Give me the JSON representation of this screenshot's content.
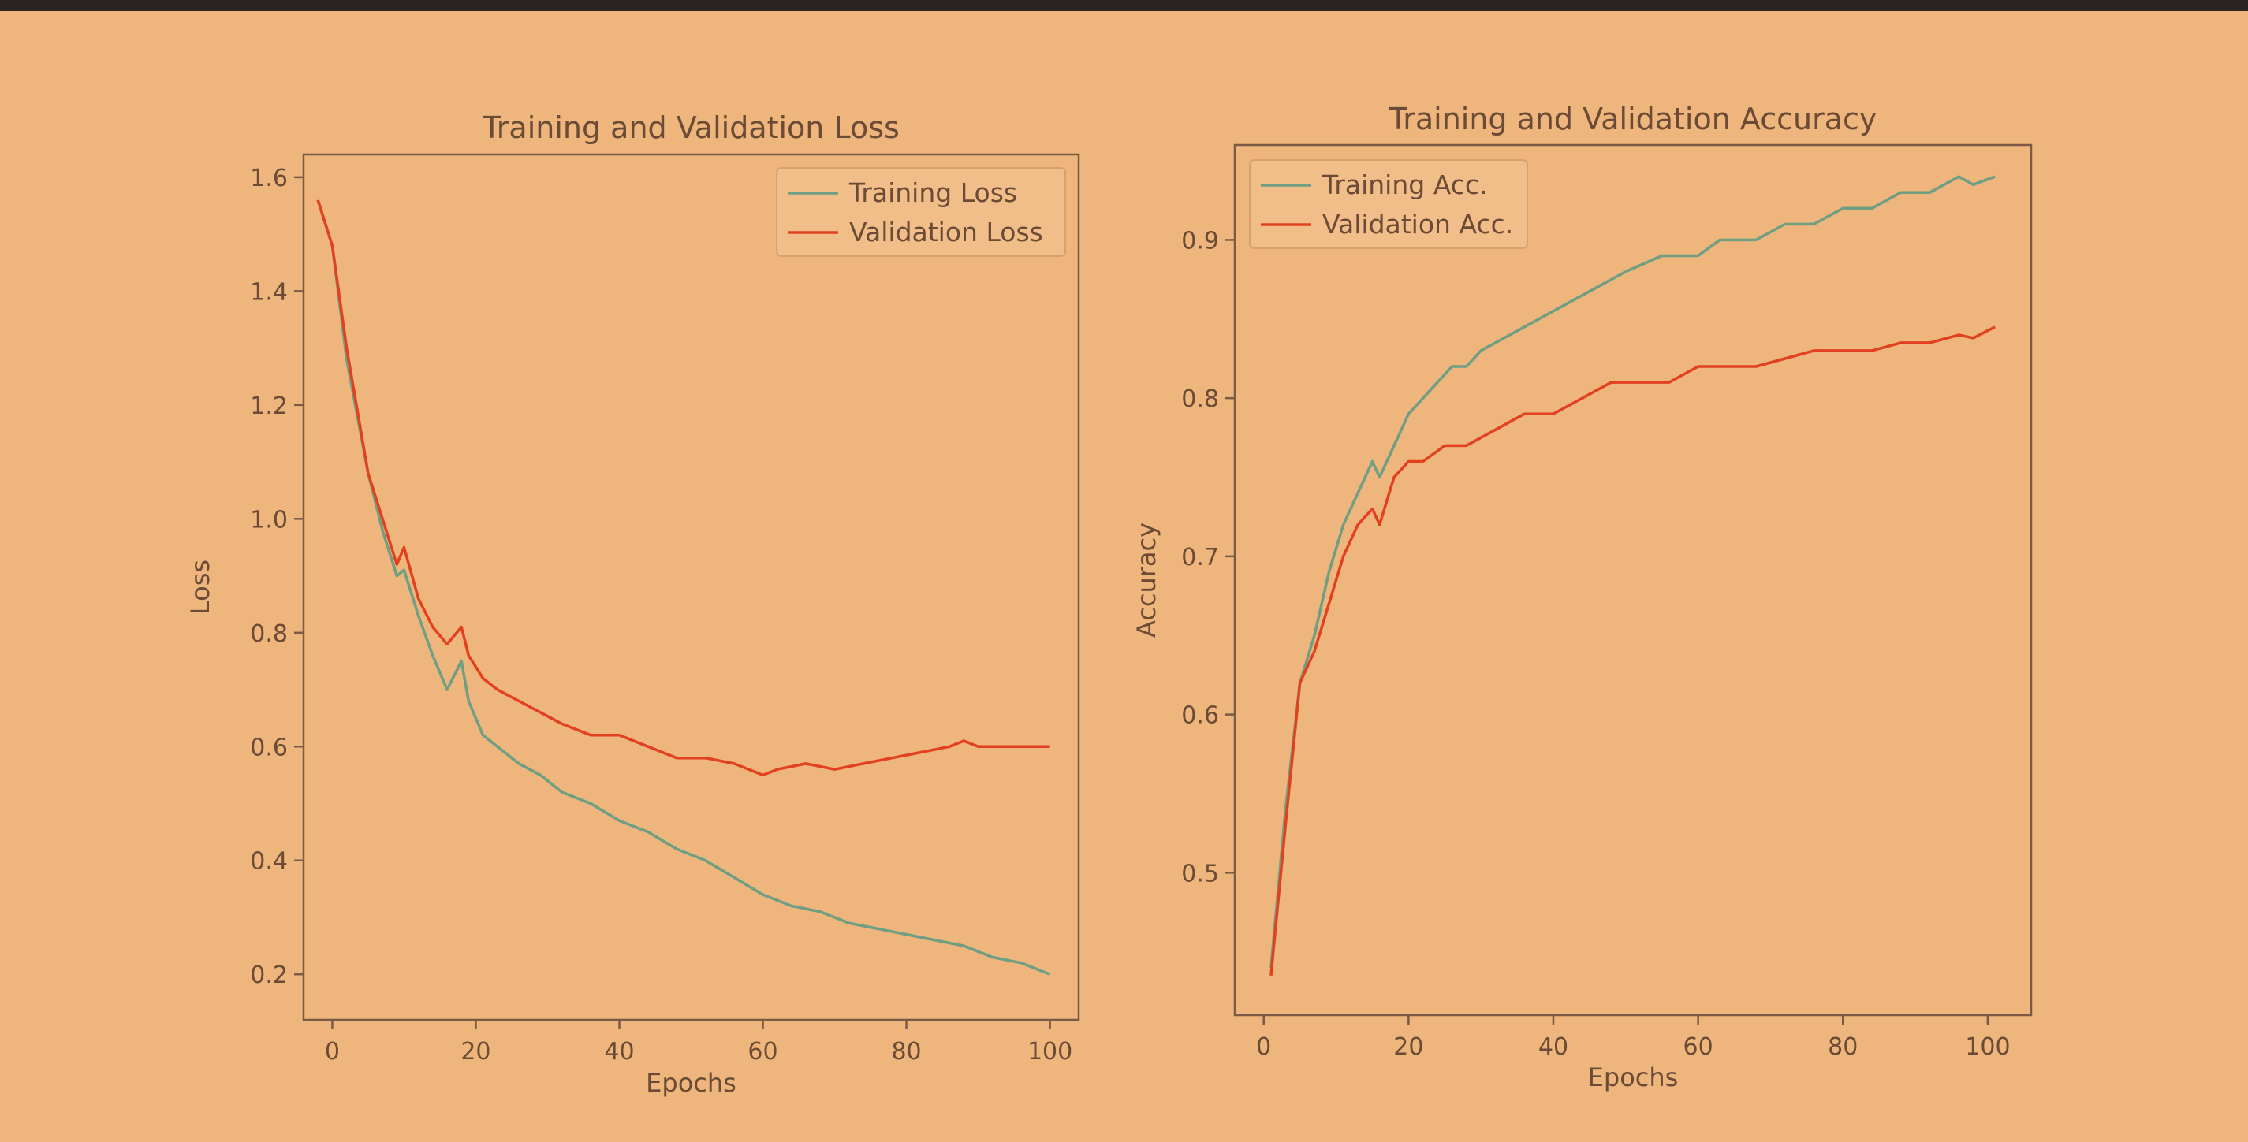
{
  "colors": {
    "training": "#6f9e83",
    "validation": "#e2411f"
  },
  "chart_data": [
    {
      "type": "line",
      "title": "Training and Validation Loss",
      "xlabel": "Epochs",
      "ylabel": "Loss",
      "xlim": [
        -4,
        104
      ],
      "ylim": [
        0.12,
        1.64
      ],
      "xticks": [
        0,
        20,
        40,
        60,
        80,
        100
      ],
      "yticks": [
        0.2,
        0.4,
        0.6,
        0.8,
        1.0,
        1.2,
        1.4,
        1.6
      ],
      "xtick_labels": [
        "0",
        "20",
        "40",
        "60",
        "80",
        "100"
      ],
      "ytick_labels": [
        "0.2",
        "0.4",
        "0.6",
        "0.8",
        "1.0",
        "1.2",
        "1.4",
        "1.6"
      ],
      "legend": "upper-right",
      "grid": false,
      "series": [
        {
          "name": "Training Loss",
          "points": [
            [
              -2,
              1.56
            ],
            [
              0,
              1.48
            ],
            [
              2,
              1.28
            ],
            [
              5,
              1.08
            ],
            [
              7,
              0.98
            ],
            [
              9,
              0.9
            ],
            [
              10,
              0.91
            ],
            [
              12,
              0.83
            ],
            [
              14,
              0.76
            ],
            [
              16,
              0.7
            ],
            [
              18,
              0.75
            ],
            [
              19,
              0.68
            ],
            [
              21,
              0.62
            ],
            [
              23,
              0.6
            ],
            [
              26,
              0.57
            ],
            [
              29,
              0.55
            ],
            [
              32,
              0.52
            ],
            [
              36,
              0.5
            ],
            [
              40,
              0.47
            ],
            [
              44,
              0.45
            ],
            [
              48,
              0.42
            ],
            [
              52,
              0.4
            ],
            [
              56,
              0.37
            ],
            [
              60,
              0.34
            ],
            [
              64,
              0.32
            ],
            [
              68,
              0.31
            ],
            [
              72,
              0.29
            ],
            [
              76,
              0.28
            ],
            [
              80,
              0.27
            ],
            [
              84,
              0.26
            ],
            [
              88,
              0.25
            ],
            [
              92,
              0.23
            ],
            [
              96,
              0.22
            ],
            [
              98,
              0.21
            ],
            [
              100,
              0.2
            ]
          ]
        },
        {
          "name": "Validation Loss",
          "points": [
            [
              -2,
              1.56
            ],
            [
              0,
              1.48
            ],
            [
              2,
              1.3
            ],
            [
              5,
              1.08
            ],
            [
              7,
              1.0
            ],
            [
              9,
              0.92
            ],
            [
              10,
              0.95
            ],
            [
              12,
              0.86
            ],
            [
              14,
              0.81
            ],
            [
              16,
              0.78
            ],
            [
              18,
              0.81
            ],
            [
              19,
              0.76
            ],
            [
              21,
              0.72
            ],
            [
              23,
              0.7
            ],
            [
              26,
              0.68
            ],
            [
              29,
              0.66
            ],
            [
              32,
              0.64
            ],
            [
              36,
              0.62
            ],
            [
              40,
              0.62
            ],
            [
              44,
              0.6
            ],
            [
              48,
              0.58
            ],
            [
              52,
              0.58
            ],
            [
              56,
              0.57
            ],
            [
              60,
              0.55
            ],
            [
              62,
              0.56
            ],
            [
              66,
              0.57
            ],
            [
              70,
              0.56
            ],
            [
              74,
              0.57
            ],
            [
              78,
              0.58
            ],
            [
              82,
              0.59
            ],
            [
              86,
              0.6
            ],
            [
              88,
              0.61
            ],
            [
              90,
              0.6
            ],
            [
              94,
              0.6
            ],
            [
              96,
              0.6
            ],
            [
              100,
              0.6
            ]
          ]
        }
      ]
    },
    {
      "type": "line",
      "title": "Training and Validation Accuracy",
      "xlabel": "Epochs",
      "ylabel": "Accuracy",
      "xlim": [
        -4,
        106
      ],
      "ylim": [
        0.41,
        0.96
      ],
      "xticks": [
        0,
        20,
        40,
        60,
        80,
        100
      ],
      "yticks": [
        0.5,
        0.6,
        0.7,
        0.8,
        0.9
      ],
      "xtick_labels": [
        "0",
        "20",
        "40",
        "60",
        "80",
        "100"
      ],
      "ytick_labels": [
        "0.5",
        "0.6",
        "0.7",
        "0.8",
        "0.9"
      ],
      "legend": "upper-left",
      "grid": false,
      "series": [
        {
          "name": "Training Acc.",
          "points": [
            [
              1,
              0.44
            ],
            [
              3,
              0.54
            ],
            [
              5,
              0.62
            ],
            [
              7,
              0.65
            ],
            [
              9,
              0.69
            ],
            [
              11,
              0.72
            ],
            [
              13,
              0.74
            ],
            [
              15,
              0.76
            ],
            [
              16,
              0.75
            ],
            [
              18,
              0.77
            ],
            [
              20,
              0.79
            ],
            [
              22,
              0.8
            ],
            [
              24,
              0.81
            ],
            [
              26,
              0.82
            ],
            [
              28,
              0.82
            ],
            [
              30,
              0.83
            ],
            [
              34,
              0.84
            ],
            [
              38,
              0.85
            ],
            [
              42,
              0.86
            ],
            [
              46,
              0.87
            ],
            [
              50,
              0.88
            ],
            [
              55,
              0.89
            ],
            [
              60,
              0.89
            ],
            [
              63,
              0.9
            ],
            [
              68,
              0.9
            ],
            [
              72,
              0.91
            ],
            [
              76,
              0.91
            ],
            [
              80,
              0.92
            ],
            [
              84,
              0.92
            ],
            [
              88,
              0.93
            ],
            [
              92,
              0.93
            ],
            [
              96,
              0.94
            ],
            [
              98,
              0.935
            ],
            [
              101,
              0.94
            ]
          ]
        },
        {
          "name": "Validation Acc.",
          "points": [
            [
              1,
              0.435
            ],
            [
              3,
              0.53
            ],
            [
              5,
              0.62
            ],
            [
              7,
              0.64
            ],
            [
              9,
              0.67
            ],
            [
              11,
              0.7
            ],
            [
              13,
              0.72
            ],
            [
              15,
              0.73
            ],
            [
              16,
              0.72
            ],
            [
              18,
              0.75
            ],
            [
              20,
              0.76
            ],
            [
              22,
              0.76
            ],
            [
              25,
              0.77
            ],
            [
              28,
              0.77
            ],
            [
              32,
              0.78
            ],
            [
              36,
              0.79
            ],
            [
              40,
              0.79
            ],
            [
              44,
              0.8
            ],
            [
              48,
              0.81
            ],
            [
              52,
              0.81
            ],
            [
              56,
              0.81
            ],
            [
              60,
              0.82
            ],
            [
              64,
              0.82
            ],
            [
              68,
              0.82
            ],
            [
              72,
              0.825
            ],
            [
              76,
              0.83
            ],
            [
              80,
              0.83
            ],
            [
              84,
              0.83
            ],
            [
              88,
              0.835
            ],
            [
              92,
              0.835
            ],
            [
              96,
              0.84
            ],
            [
              98,
              0.838
            ],
            [
              101,
              0.845
            ]
          ]
        }
      ]
    }
  ]
}
